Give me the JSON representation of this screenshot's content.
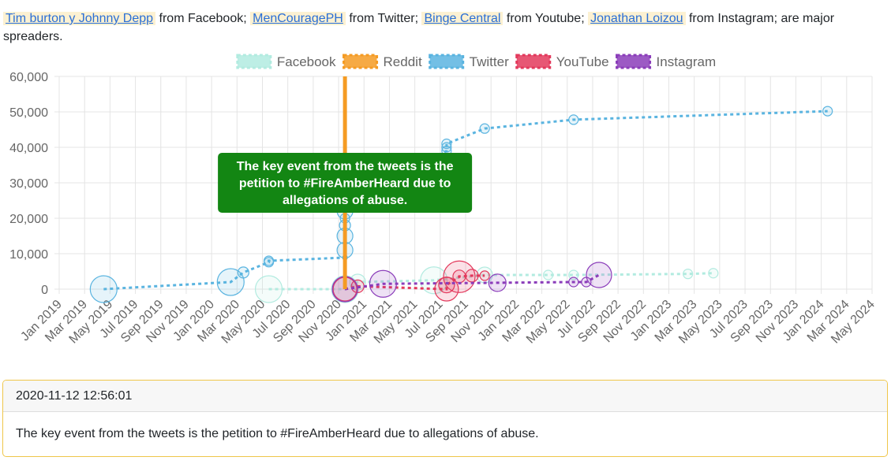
{
  "header": {
    "items": [
      {
        "link": "Tim burton y Johnny Depp",
        "text": "from Facebook;"
      },
      {
        "link": "MenCouragePH",
        "text": "from Twitter;"
      },
      {
        "link": "Binge Central",
        "text": "from Youtube;"
      },
      {
        "link": "Jonathan Loizou",
        "text": "from Instagram;"
      }
    ],
    "tail": "are major spreaders."
  },
  "chart_data": {
    "type": "bubble-line",
    "xlim": [
      "2019-01",
      "2024-05"
    ],
    "xticks": [
      {
        "value": "2019-01",
        "label": "Jan 2019"
      },
      {
        "value": "2019-03",
        "label": "Mar 2019"
      },
      {
        "value": "2019-05",
        "label": "May 2019"
      },
      {
        "value": "2019-07",
        "label": "Jul 2019"
      },
      {
        "value": "2019-09",
        "label": "Sep 2019"
      },
      {
        "value": "2019-11",
        "label": "Nov 2019"
      },
      {
        "value": "2020-01",
        "label": "Jan 2020"
      },
      {
        "value": "2020-03",
        "label": "Mar 2020"
      },
      {
        "value": "2020-05",
        "label": "May 2020"
      },
      {
        "value": "2020-07",
        "label": "Jul 2020"
      },
      {
        "value": "2020-09",
        "label": "Sep 2020"
      },
      {
        "value": "2020-11",
        "label": "Nov 2020"
      },
      {
        "value": "2021-01",
        "label": "Jan 2021"
      },
      {
        "value": "2021-03",
        "label": "Mar 2021"
      },
      {
        "value": "2021-05",
        "label": "May 2021"
      },
      {
        "value": "2021-07",
        "label": "Jul 2021"
      },
      {
        "value": "2021-09",
        "label": "Sep 2021"
      },
      {
        "value": "2021-11",
        "label": "Nov 2021"
      },
      {
        "value": "2022-01",
        "label": "Jan 2022"
      },
      {
        "value": "2022-03",
        "label": "Mar 2022"
      },
      {
        "value": "2022-05",
        "label": "May 2022"
      },
      {
        "value": "2022-07",
        "label": "Jul 2022"
      },
      {
        "value": "2022-09",
        "label": "Sep 2022"
      },
      {
        "value": "2022-11",
        "label": "Nov 2022"
      },
      {
        "value": "2023-01",
        "label": "Jan 2023"
      },
      {
        "value": "2023-03",
        "label": "Mar 2023"
      },
      {
        "value": "2023-05",
        "label": "May 2023"
      },
      {
        "value": "2023-07",
        "label": "Jul 2023"
      },
      {
        "value": "2023-09",
        "label": "Sep 2023"
      },
      {
        "value": "2023-11",
        "label": "Nov 2023"
      },
      {
        "value": "2024-01",
        "label": "Jan 2024"
      },
      {
        "value": "2024-03",
        "label": "Mar 2024"
      },
      {
        "value": "2024-05",
        "label": "May 2024"
      }
    ],
    "ylim": [
      0,
      60000
    ],
    "yticks": [
      {
        "value": 0,
        "label": "0"
      },
      {
        "value": 10000,
        "label": "10,000"
      },
      {
        "value": 20000,
        "label": "20,000"
      },
      {
        "value": 30000,
        "label": "30,000"
      },
      {
        "value": 40000,
        "label": "40,000"
      },
      {
        "value": 50000,
        "label": "50,000"
      },
      {
        "value": 60000,
        "label": "60,000"
      }
    ],
    "grid": true,
    "legend": "top",
    "series": [
      {
        "name": "Facebook",
        "color": "#b2ebe0",
        "x": [
          "2020-05",
          "2020-11",
          "2020-12",
          "2021-06",
          "2021-10",
          "2022-03",
          "2022-05",
          "2023-02",
          "2023-04"
        ],
        "values": [
          0,
          0,
          2000,
          2500,
          4000,
          4000,
          4000,
          4300,
          4500
        ],
        "sizes": [
          17,
          17,
          10,
          17,
          10,
          6,
          6,
          6,
          6
        ]
      },
      {
        "name": "Reddit",
        "color": "#f59b23",
        "x": [],
        "values": [],
        "sizes": []
      },
      {
        "name": "Twitter",
        "color": "#5ab4e0",
        "x": [
          "2019-04",
          "2020-02",
          "2020-03",
          "2020-05",
          "2020-05",
          "2020-11",
          "2020-11",
          "2020-11",
          "2020-11",
          "2020-11",
          "2020-11",
          "2021-07",
          "2021-07",
          "2021-07",
          "2021-10",
          "2022-05",
          "2024-01"
        ],
        "values": [
          0,
          2000,
          4700,
          7600,
          8000,
          8900,
          11000,
          15000,
          18000,
          20000,
          22000,
          39000,
          40000,
          41000,
          45300,
          47800,
          50200
        ],
        "sizes": [
          17,
          17,
          7,
          6,
          6,
          3,
          10,
          10,
          7,
          6,
          10,
          6,
          6,
          6,
          6,
          6,
          6
        ]
      },
      {
        "name": "YouTube",
        "color": "#e3395c",
        "x": [
          "2020-11",
          "2020-12",
          "2021-07",
          "2021-07",
          "2021-08",
          "2021-08",
          "2021-09",
          "2021-10"
        ],
        "values": [
          0,
          800,
          0,
          1200,
          3500,
          3600,
          3800,
          3800
        ],
        "sizes": [
          15,
          8,
          15,
          10,
          20,
          8,
          8,
          6
        ]
      },
      {
        "name": "Instagram",
        "color": "#8b3dba",
        "x": [
          "2020-11",
          "2021-02",
          "2021-11",
          "2022-05",
          "2022-06",
          "2022-07"
        ],
        "values": [
          0,
          1500,
          1800,
          2000,
          2000,
          4000
        ],
        "sizes": [
          16,
          17,
          11,
          6,
          6,
          16
        ]
      }
    ],
    "annotation": {
      "x": "2020-11",
      "color": "#f59b23",
      "box_color": "#138613",
      "lines": [
        "The key event from the tweets is the",
        "petition to #FireAmberHeard due to",
        "allegations of abuse."
      ]
    }
  },
  "card": {
    "header": "2020-11-12 12:56:01",
    "body": "The key event from the tweets is the petition to #FireAmberHeard due to allegations of abuse."
  }
}
